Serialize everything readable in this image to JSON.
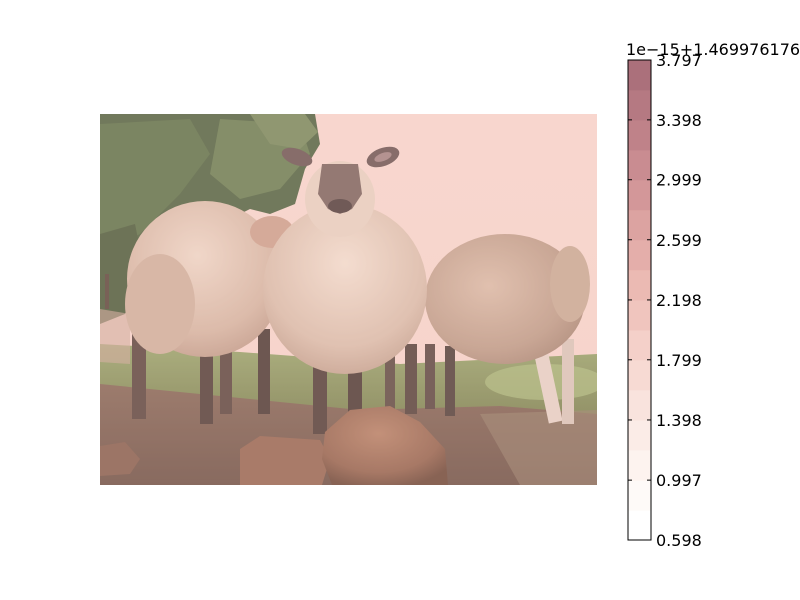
{
  "chart_data": {
    "type": "heatmap",
    "title": "",
    "xlabel": "",
    "ylabel": "",
    "image_subject": "three fleecy sheep standing on dirt near rocks with evergreen trees behind, overlaid with a translucent pink tint",
    "colorbar": {
      "colormap": "light pink to muted rose",
      "offset_label": "1e−15+1.469976176",
      "range": [
        0.598,
        3.797
      ],
      "tick_labels": [
        "3.797",
        "3.398",
        "2.999",
        "2.599",
        "2.198",
        "1.799",
        "1.398",
        "0.997",
        "0.598"
      ],
      "levels": [
        0.598,
        0.797,
        0.997,
        1.198,
        1.398,
        1.599,
        1.799,
        1.998,
        2.198,
        2.399,
        2.599,
        2.799,
        2.999,
        3.198,
        3.398,
        3.598,
        3.797
      ],
      "colors": [
        "#ffffff",
        "#fefaf8",
        "#fdf3ef",
        "#fbece7",
        "#f9e3dd",
        "#f7dad3",
        "#f4d0c9",
        "#f0c5be",
        "#ebbab3",
        "#e4aeaa",
        "#dca3a1",
        "#d39799",
        "#c98c91",
        "#bf8289",
        "#b57982",
        "#ab707b"
      ]
    },
    "colors": {
      "tint": "#f6c9bf",
      "sky": "#f9dcd5",
      "trees": "#4f6a43",
      "grass": "#7d9a5a",
      "dirt": "#6b5146",
      "wool": "#d6bcaa",
      "rock": "#8a5c46"
    }
  }
}
